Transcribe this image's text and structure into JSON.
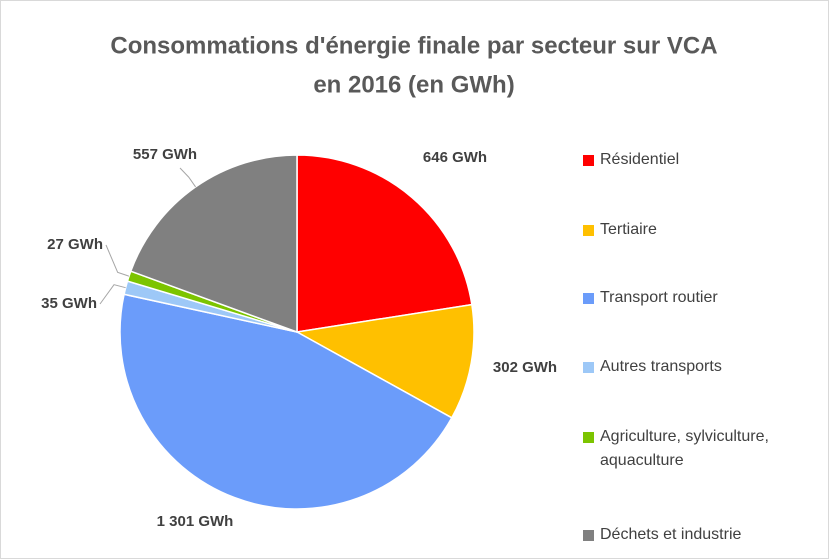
{
  "chart_data": {
    "type": "pie",
    "title": [
      "Consommations d'énergie finale par secteur sur VCA",
      "en 2016 (en GWh)"
    ],
    "categories": [
      "Résidentiel",
      "Tertiaire",
      "Transport routier",
      "Autres transports",
      "Agriculture, sylviculture, aquaculture",
      "Déchets et industrie"
    ],
    "values": [
      646,
      302,
      1301,
      35,
      27,
      557
    ],
    "value_labels": [
      "646 GWh",
      "302 GWh",
      "1 301 GWh",
      "35 GWh",
      "27 GWh",
      "557 GWh"
    ],
    "colors": [
      "#ff0000",
      "#ffc000",
      "#6b9cfa",
      "#9dc8f7",
      "#7cc400",
      "#808080"
    ],
    "legend": "right"
  }
}
